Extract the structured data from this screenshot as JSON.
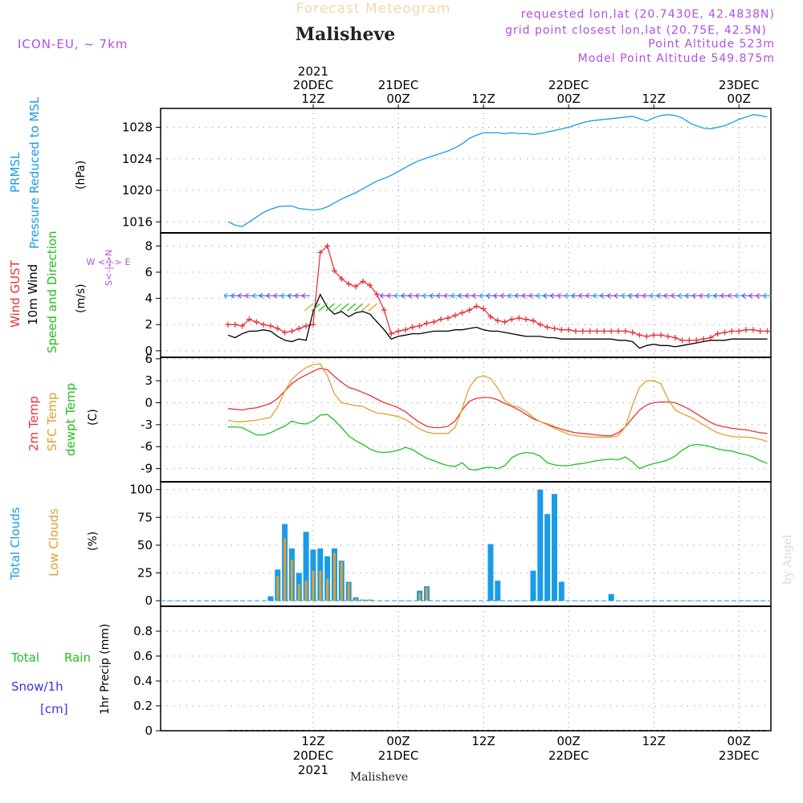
{
  "header": {
    "product": "Forecast Meteogram",
    "model": "ICON-EU, ~ 7km",
    "location": "Malisheve",
    "requested": "requested lon,lat (20.7430E, 42.4838N)",
    "gridpoint": "grid point closest lon,lat (20.75E, 42.5N)",
    "point_alt": "Point Altitude 523m",
    "model_alt": "Model Point Altitude 549.875m"
  },
  "footer": {
    "location": "Malisheve",
    "watermark": "by Angel"
  },
  "colors": {
    "pressure": "#1a9be8",
    "gust": "#e8333a",
    "wind": "#000000",
    "barb_green": "#22c022",
    "temp2m": "#e8333a",
    "sfctemp": "#e0a030",
    "dewpt": "#22c022",
    "total_clouds": "#1a9be8",
    "low_clouds": "#e0a030",
    "rain": "#22c022",
    "snow": "#3333ee",
    "purple": "#b050e0"
  },
  "time_axis": {
    "top_labels": [
      {
        "h": 12,
        "lines": [
          "2021",
          "20DEC",
          "12Z"
        ]
      },
      {
        "h": 24,
        "lines": [
          "21DEC",
          "00Z"
        ]
      },
      {
        "h": 36,
        "lines": [
          "12Z"
        ]
      },
      {
        "h": 48,
        "lines": [
          "22DEC",
          "00Z"
        ]
      },
      {
        "h": 60,
        "lines": [
          "12Z"
        ]
      },
      {
        "h": 72,
        "lines": [
          "23DEC",
          "00Z"
        ]
      }
    ],
    "bottom_labels": [
      {
        "h": 12,
        "lines": [
          "12Z",
          "20DEC",
          "2021"
        ]
      },
      {
        "h": 24,
        "lines": [
          "00Z",
          "21DEC"
        ]
      },
      {
        "h": 36,
        "lines": [
          "12Z"
        ]
      },
      {
        "h": 48,
        "lines": [
          "00Z",
          "22DEC"
        ]
      },
      {
        "h": 60,
        "lines": [
          "12Z"
        ]
      },
      {
        "h": 72,
        "lines": [
          "00Z",
          "23DEC"
        ]
      }
    ]
  },
  "labels": {
    "pressure": [
      "PRMSL",
      "Pressure Reduced to MSL"
    ],
    "pressure_unit": "(hPa)",
    "wind": [
      "Wind GUST",
      "10m Wind",
      "Speed and Direction"
    ],
    "wind_unit": "(m/s)",
    "compass": {
      "n": "N",
      "s": "S",
      "w": "W",
      "e": "E",
      "ns_line": "S<-|->N",
      "we_line": "W <-|-> E"
    },
    "temp": [
      "2m Temp",
      "SFC Temp",
      "dewpt Temp"
    ],
    "temp_unit": "(C)",
    "clouds": [
      "Total Clouds",
      "Low Clouds"
    ],
    "clouds_unit": "(%)",
    "precip_unit": "1hr Precip (mm)",
    "precip": [
      "Total",
      "Rain",
      "Snow/1h",
      "[cm]"
    ]
  },
  "chart_data": [
    {
      "type": "line",
      "name": "PRMSL",
      "ylim": [
        1014.6,
        1030.4
      ],
      "yticks": [
        1016,
        1020,
        1024,
        1028
      ],
      "x_hours": [
        0,
        1,
        2,
        3,
        4,
        5,
        6,
        7,
        8,
        9,
        10,
        11,
        12,
        13,
        14,
        15,
        16,
        17,
        18,
        19,
        20,
        21,
        22,
        23,
        24,
        25,
        26,
        27,
        28,
        29,
        30,
        31,
        32,
        33,
        34,
        35,
        36,
        37,
        38,
        39,
        40,
        41,
        42,
        43,
        44,
        45,
        46,
        47,
        48,
        49,
        50,
        51,
        52,
        53,
        54,
        55,
        56,
        57,
        58,
        59,
        60,
        61,
        62,
        63,
        64,
        65,
        66,
        67,
        68,
        69,
        70,
        71,
        72,
        73,
        74,
        75,
        76
      ],
      "values": [
        1016.0,
        1015.6,
        1015.4,
        1016.0,
        1016.6,
        1017.2,
        1017.6,
        1017.9,
        1018.0,
        1018.0,
        1017.7,
        1017.6,
        1017.5,
        1017.6,
        1017.9,
        1018.4,
        1018.9,
        1019.3,
        1019.7,
        1020.2,
        1020.7,
        1021.2,
        1021.5,
        1021.9,
        1022.4,
        1022.9,
        1023.4,
        1023.8,
        1024.1,
        1024.4,
        1024.7,
        1025.0,
        1025.4,
        1025.9,
        1026.6,
        1027.0,
        1027.3,
        1027.3,
        1027.3,
        1027.2,
        1027.3,
        1027.2,
        1027.2,
        1027.1,
        1027.2,
        1027.4,
        1027.6,
        1027.8,
        1028.0,
        1028.3,
        1028.6,
        1028.8,
        1028.9,
        1029.0,
        1029.1,
        1029.2,
        1029.3,
        1029.4,
        1029.1,
        1028.8,
        1029.2,
        1029.5,
        1029.6,
        1029.5,
        1029.2,
        1028.6,
        1028.2,
        1027.9,
        1027.8,
        1028.0,
        1028.2,
        1028.6,
        1029.0,
        1029.3,
        1029.6,
        1029.5,
        1029.3
      ]
    },
    {
      "type": "line",
      "name": "Wind",
      "ylim": [
        -0.5,
        9.0
      ],
      "yticks": [
        0,
        2,
        4,
        6,
        8
      ],
      "x_hours": [
        0,
        1,
        2,
        3,
        4,
        5,
        6,
        7,
        8,
        9,
        10,
        11,
        12,
        13,
        14,
        15,
        16,
        17,
        18,
        19,
        20,
        21,
        22,
        23,
        24,
        25,
        26,
        27,
        28,
        29,
        30,
        31,
        32,
        33,
        34,
        35,
        36,
        37,
        38,
        39,
        40,
        41,
        42,
        43,
        44,
        45,
        46,
        47,
        48,
        49,
        50,
        51,
        52,
        53,
        54,
        55,
        56,
        57,
        58,
        59,
        60,
        61,
        62,
        63,
        64,
        65,
        66,
        67,
        68,
        69,
        70,
        71,
        72,
        73,
        74,
        75,
        76
      ],
      "series": [
        {
          "name": "Wind GUST",
          "values": [
            2.0,
            2.0,
            1.9,
            2.4,
            2.2,
            2.0,
            1.9,
            1.7,
            1.4,
            1.5,
            1.7,
            1.9,
            2.0,
            7.5,
            8.0,
            6.1,
            5.5,
            5.1,
            4.9,
            5.3,
            5.0,
            4.3,
            3.1,
            1.3,
            1.5,
            1.6,
            1.8,
            1.9,
            2.1,
            2.2,
            2.4,
            2.5,
            2.7,
            2.9,
            3.1,
            3.4,
            3.2,
            2.6,
            2.3,
            2.2,
            2.4,
            2.5,
            2.4,
            2.3,
            2.0,
            1.8,
            1.7,
            1.6,
            1.6,
            1.5,
            1.5,
            1.5,
            1.5,
            1.5,
            1.5,
            1.5,
            1.5,
            1.4,
            1.2,
            1.1,
            1.2,
            1.2,
            1.1,
            1.0,
            0.8,
            0.8,
            0.8,
            0.9,
            1.0,
            1.3,
            1.4,
            1.5,
            1.5,
            1.6,
            1.6,
            1.5,
            1.5
          ]
        },
        {
          "name": "10m Wind",
          "values": [
            1.2,
            1.0,
            1.3,
            1.5,
            1.5,
            1.6,
            1.5,
            1.1,
            0.8,
            0.7,
            0.9,
            0.8,
            3.0,
            4.3,
            3.3,
            2.8,
            3.0,
            2.6,
            2.9,
            3.0,
            2.8,
            2.2,
            1.6,
            0.9,
            1.1,
            1.2,
            1.3,
            1.3,
            1.4,
            1.5,
            1.5,
            1.5,
            1.6,
            1.6,
            1.7,
            1.8,
            1.6,
            1.5,
            1.5,
            1.4,
            1.3,
            1.2,
            1.1,
            1.1,
            1.1,
            1.0,
            1.0,
            0.9,
            0.9,
            0.9,
            0.9,
            0.9,
            0.9,
            0.9,
            0.9,
            0.8,
            0.8,
            0.7,
            0.2,
            0.4,
            0.5,
            0.4,
            0.4,
            0.3,
            0.4,
            0.5,
            0.6,
            0.7,
            0.8,
            0.8,
            0.8,
            0.9,
            0.9,
            0.9,
            0.9,
            0.9,
            0.9
          ]
        }
      ]
    },
    {
      "type": "line",
      "name": "Temperature",
      "ylim": [
        -10.8,
        6.2
      ],
      "yticks": [
        -9,
        -6,
        -3,
        0,
        3,
        6
      ],
      "x_hours": [
        0,
        1,
        2,
        3,
        4,
        5,
        6,
        7,
        8,
        9,
        10,
        11,
        12,
        13,
        14,
        15,
        16,
        17,
        18,
        19,
        20,
        21,
        22,
        23,
        24,
        25,
        26,
        27,
        28,
        29,
        30,
        31,
        32,
        33,
        34,
        35,
        36,
        37,
        38,
        39,
        40,
        41,
        42,
        43,
        44,
        45,
        46,
        47,
        48,
        49,
        50,
        51,
        52,
        53,
        54,
        55,
        56,
        57,
        58,
        59,
        60,
        61,
        62,
        63,
        64,
        65,
        66,
        67,
        68,
        69,
        70,
        71,
        72,
        73,
        74,
        75,
        76
      ],
      "series": [
        {
          "name": "2m Temp",
          "values": [
            -0.8,
            -0.9,
            -1.0,
            -0.8,
            -0.7,
            -0.4,
            -0.1,
            0.6,
            1.6,
            2.6,
            3.3,
            3.8,
            4.3,
            4.7,
            4.5,
            3.6,
            2.8,
            2.1,
            1.8,
            1.4,
            1.0,
            0.5,
            0.0,
            -0.3,
            -0.7,
            -1.2,
            -2.0,
            -2.7,
            -3.2,
            -3.4,
            -3.4,
            -3.2,
            -2.5,
            -1.0,
            0.2,
            0.6,
            0.7,
            0.7,
            0.4,
            -0.1,
            -0.5,
            -1.0,
            -1.6,
            -2.2,
            -2.6,
            -2.9,
            -3.3,
            -3.6,
            -3.9,
            -4.1,
            -4.2,
            -4.3,
            -4.4,
            -4.5,
            -4.5,
            -4.1,
            -3.3,
            -2.1,
            -1.0,
            -0.3,
            0.0,
            0.1,
            0.1,
            0.0,
            -0.4,
            -0.9,
            -1.5,
            -2.1,
            -2.7,
            -3.1,
            -3.3,
            -3.5,
            -3.6,
            -3.7,
            -3.9,
            -4.1,
            -4.2
          ]
        },
        {
          "name": "SFC Temp",
          "values": [
            -2.4,
            -2.6,
            -2.6,
            -2.5,
            -2.4,
            -2.2,
            -2.0,
            -0.6,
            1.6,
            3.2,
            4.1,
            4.8,
            5.2,
            5.3,
            3.7,
            1.2,
            0.0,
            -0.2,
            -0.4,
            -0.5,
            -1.0,
            -1.4,
            -1.5,
            -1.7,
            -1.9,
            -2.3,
            -2.9,
            -3.6,
            -4.0,
            -4.2,
            -4.2,
            -4.2,
            -3.4,
            -0.8,
            2.1,
            3.4,
            3.7,
            3.3,
            2.0,
            0.3,
            -0.4,
            -0.6,
            -1.2,
            -2.0,
            -2.6,
            -3.0,
            -3.5,
            -3.9,
            -4.3,
            -4.5,
            -4.6,
            -4.7,
            -4.7,
            -4.7,
            -4.7,
            -4.5,
            -3.3,
            -0.3,
            2.1,
            3.0,
            3.0,
            2.6,
            0.5,
            -1.0,
            -1.5,
            -1.9,
            -2.4,
            -3.0,
            -3.6,
            -4.1,
            -4.4,
            -4.6,
            -4.7,
            -4.7,
            -4.8,
            -5.0,
            -5.3
          ]
        },
        {
          "name": "dewpt Temp",
          "values": [
            -3.3,
            -3.3,
            -3.4,
            -3.9,
            -4.4,
            -4.4,
            -4.1,
            -3.6,
            -3.2,
            -2.5,
            -2.8,
            -2.9,
            -2.5,
            -1.7,
            -1.6,
            -2.4,
            -3.4,
            -4.5,
            -5.2,
            -5.7,
            -6.3,
            -6.7,
            -6.8,
            -6.7,
            -6.5,
            -6.1,
            -6.4,
            -7.0,
            -7.6,
            -7.9,
            -8.3,
            -8.6,
            -8.7,
            -8.2,
            -9.1,
            -9.2,
            -8.9,
            -8.8,
            -9.0,
            -8.6,
            -7.5,
            -7.0,
            -6.8,
            -6.9,
            -7.3,
            -8.2,
            -8.5,
            -8.6,
            -8.6,
            -8.4,
            -8.3,
            -8.1,
            -7.9,
            -7.8,
            -7.7,
            -7.8,
            -7.4,
            -8.1,
            -9.0,
            -8.6,
            -8.3,
            -8.1,
            -7.8,
            -7.3,
            -6.5,
            -5.9,
            -5.7,
            -5.8,
            -6.0,
            -6.3,
            -6.5,
            -6.6,
            -6.9,
            -7.1,
            -7.4,
            -7.9,
            -8.3
          ]
        }
      ]
    },
    {
      "type": "bar",
      "name": "Clouds",
      "ylim": [
        -5,
        107
      ],
      "yticks": [
        0,
        25,
        50,
        75,
        100
      ],
      "x_hours": [
        0,
        1,
        2,
        3,
        4,
        5,
        6,
        7,
        8,
        9,
        10,
        11,
        12,
        13,
        14,
        15,
        16,
        17,
        18,
        19,
        20,
        21,
        22,
        23,
        24,
        25,
        26,
        27,
        28,
        29,
        30,
        31,
        32,
        33,
        34,
        35,
        36,
        37,
        38,
        39,
        40,
        41,
        42,
        43,
        44,
        45,
        46,
        47,
        48,
        49,
        50,
        51,
        52,
        53,
        54,
        55,
        56,
        57,
        58,
        59,
        60,
        61,
        62,
        63,
        64,
        65,
        66,
        67,
        68,
        69,
        70,
        71,
        72,
        73,
        74,
        75,
        76
      ],
      "series": [
        {
          "name": "Total Clouds",
          "values": [
            0,
            0,
            0,
            0,
            0,
            0,
            4,
            28,
            69,
            47,
            25,
            62,
            46,
            47,
            40,
            47,
            36,
            17,
            3,
            1,
            1,
            0,
            0,
            0,
            0,
            0,
            0,
            9,
            13,
            0,
            0,
            0,
            0,
            0,
            0,
            0,
            0,
            51,
            18,
            0,
            0,
            0,
            0,
            27,
            100,
            78,
            96,
            17,
            0,
            0,
            0,
            0,
            0,
            0,
            6,
            0,
            0,
            0,
            0,
            0,
            0,
            0,
            0,
            0,
            0,
            0,
            0,
            0,
            0,
            0,
            0,
            0,
            0,
            0,
            0,
            0,
            0
          ]
        },
        {
          "name": "Low Clouds",
          "values": [
            0,
            0,
            0,
            0,
            0,
            0,
            0,
            22,
            56,
            37,
            15,
            18,
            27,
            27,
            20,
            43,
            35,
            16,
            2,
            1,
            1,
            0,
            0,
            0,
            0,
            0,
            0,
            7,
            12,
            0,
            0,
            0,
            0,
            0,
            0,
            0,
            0,
            0,
            0,
            0,
            0,
            0,
            0,
            0,
            0,
            0,
            0,
            0,
            0,
            0,
            0,
            0,
            0,
            0,
            0,
            0,
            0,
            0,
            0,
            0,
            0,
            0,
            0,
            0,
            0,
            0,
            0,
            0,
            0,
            0,
            0,
            0,
            0,
            0,
            0,
            0,
            0
          ]
        }
      ]
    },
    {
      "type": "line",
      "name": "Precipitation",
      "ylim": [
        0,
        1.0
      ],
      "yticks": [
        "0",
        "0.2",
        "0.4",
        "0.6",
        "0.8"
      ],
      "x_hours": [
        0,
        76
      ],
      "values": [
        0,
        0
      ]
    }
  ]
}
